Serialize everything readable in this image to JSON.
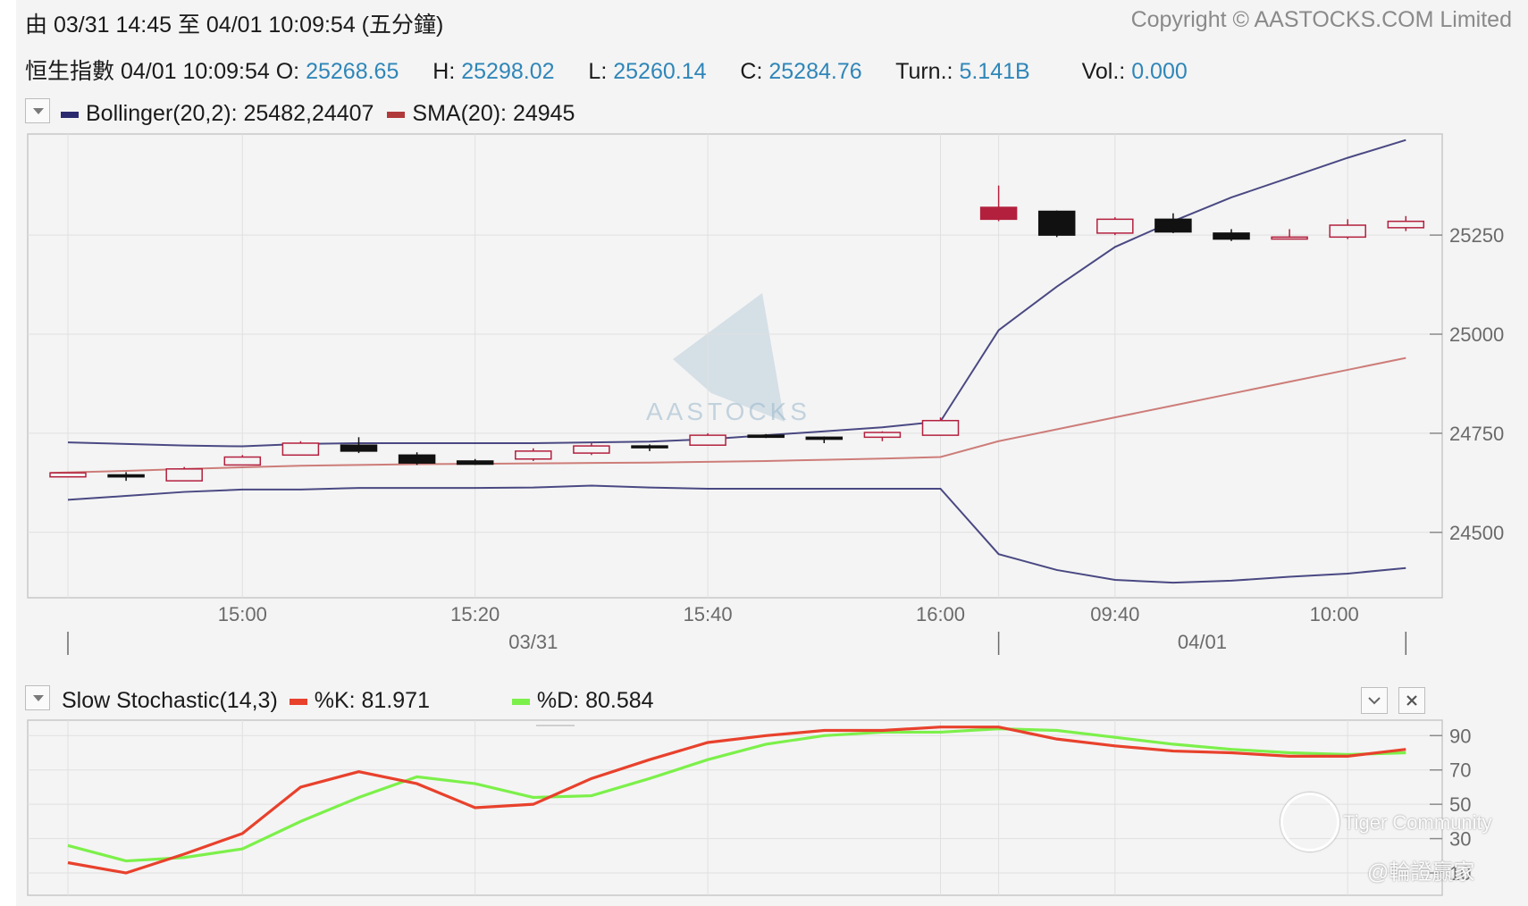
{
  "header": {
    "range_text": "由  03/31 14:45 至  04/01 10:09:54 (五分鐘)",
    "copyright": "Copyright © AASTOCKS.COM Limited"
  },
  "quote": {
    "name_time": "恒生指數 04/01 10:09:54",
    "open_label": "O:",
    "open": "25268.65",
    "high_label": "H:",
    "high": "25298.02",
    "low_label": "L:",
    "low": "25260.14",
    "close_label": "C:",
    "close": "25284.76",
    "turn_label": "Turn.:",
    "turn": "5.141B",
    "vol_label": "Vol.:",
    "vol": "0.000"
  },
  "main_legend": {
    "bollinger": "Bollinger(20,2): 25482,24407",
    "bollinger_color": "#2b2a6e",
    "sma": "SMA(20): 24945",
    "sma_color": "#b03a3a"
  },
  "stoch_legend": {
    "title": "Slow Stochastic(14,3)",
    "k": "%K: 81.971",
    "k_color": "#e8412c",
    "d": "%D: 80.584",
    "d_color": "#7cf04a"
  },
  "watermarks": {
    "center": "AASTOCKS",
    "tiger": "Tiger Community",
    "author": "@輪證贏家"
  },
  "icons": {
    "main_toggle": "dropdown-triangle-icon",
    "stoch_toggle": "dropdown-triangle-icon",
    "collapse": "chevron-down-icon",
    "close": "close-icon"
  },
  "chart_data": [
    {
      "type": "candlestick",
      "title": "恒生指數",
      "x_labels": [
        "15:00",
        "15:20",
        "15:40",
        "16:00",
        "09:40",
        "10:00"
      ],
      "date_labels": [
        "03/31",
        "04/01"
      ],
      "y_ticks": [
        24500,
        24750,
        25000,
        25250
      ],
      "ylim": [
        24335,
        25505
      ],
      "grid": true,
      "candles": [
        {
          "o": 24640,
          "h": 24650,
          "l": 24640,
          "c": 24650
        },
        {
          "o": 24645,
          "h": 24652,
          "l": 24630,
          "c": 24640
        },
        {
          "o": 24630,
          "h": 24665,
          "l": 24630,
          "c": 24660
        },
        {
          "o": 24670,
          "h": 24695,
          "l": 24670,
          "c": 24690
        },
        {
          "o": 24695,
          "h": 24730,
          "l": 24695,
          "c": 24725
        },
        {
          "o": 24720,
          "h": 24740,
          "l": 24700,
          "c": 24705
        },
        {
          "o": 24695,
          "h": 24702,
          "l": 24670,
          "c": 24675
        },
        {
          "o": 24680,
          "h": 24685,
          "l": 24670,
          "c": 24672
        },
        {
          "o": 24685,
          "h": 24712,
          "l": 24680,
          "c": 24705
        },
        {
          "o": 24700,
          "h": 24725,
          "l": 24695,
          "c": 24718
        },
        {
          "o": 24718,
          "h": 24722,
          "l": 24705,
          "c": 24714
        },
        {
          "o": 24720,
          "h": 24750,
          "l": 24720,
          "c": 24745
        },
        {
          "o": 24745,
          "h": 24748,
          "l": 24738,
          "c": 24740
        },
        {
          "o": 24740,
          "h": 24742,
          "l": 24725,
          "c": 24735
        },
        {
          "o": 24740,
          "h": 24755,
          "l": 24730,
          "c": 24752
        },
        {
          "o": 24745,
          "h": 24790,
          "l": 24745,
          "c": 24782
        },
        {
          "o": 25320,
          "h": 25375,
          "l": 25285,
          "c": 25290
        },
        {
          "o": 25310,
          "h": 25312,
          "l": 25245,
          "c": 25250
        },
        {
          "o": 25255,
          "h": 25295,
          "l": 25250,
          "c": 25290
        },
        {
          "o": 25290,
          "h": 25305,
          "l": 25255,
          "c": 25258
        },
        {
          "o": 25255,
          "h": 25265,
          "l": 25235,
          "c": 25240
        },
        {
          "o": 25240,
          "h": 25265,
          "l": 25240,
          "c": 25245
        },
        {
          "o": 25245,
          "h": 25290,
          "l": 25240,
          "c": 25275
        },
        {
          "o": 25268.65,
          "h": 25298.02,
          "l": 25260.14,
          "c": 25284.76
        }
      ],
      "series": [
        {
          "name": "Bollinger upper",
          "values": [
            24727,
            24723,
            24719,
            24717,
            24723,
            24725,
            24725,
            24725,
            24725,
            24727,
            24729,
            24735,
            24745,
            24755,
            24765,
            24780,
            25010,
            25120,
            25220,
            25285,
            25345,
            25395,
            25445,
            25490
          ]
        },
        {
          "name": "Bollinger lower",
          "values": [
            24582,
            24592,
            24602,
            24608,
            24608,
            24612,
            24612,
            24612,
            24613,
            24618,
            24613,
            24610,
            24610,
            24610,
            24610,
            24610,
            24445,
            24405,
            24380,
            24373,
            24378,
            24388,
            24396,
            24410
          ]
        },
        {
          "name": "SMA",
          "values": [
            24650,
            24655,
            24660,
            24664,
            24668,
            24670,
            24672,
            24673,
            24674,
            24675,
            24676,
            24678,
            24680,
            24683,
            24686,
            24690,
            24730,
            24760,
            24790,
            24820,
            24850,
            24880,
            24910,
            24940
          ]
        }
      ]
    },
    {
      "type": "line",
      "title": "Slow Stochastic(14,3)",
      "y_ticks": [
        10,
        30,
        50,
        70,
        90
      ],
      "ylim": [
        -3,
        99
      ],
      "series": [
        {
          "name": "%K",
          "values": [
            16,
            10,
            21,
            33,
            60,
            69,
            62,
            48,
            50,
            65,
            76,
            86,
            90,
            93,
            93,
            95,
            95,
            88,
            84,
            81,
            80,
            78,
            78,
            82
          ]
        },
        {
          "name": "%D",
          "values": [
            26,
            17,
            19,
            24,
            40,
            54,
            66,
            62,
            54,
            55,
            65,
            76,
            85,
            90,
            92,
            92,
            94,
            93,
            89,
            85,
            82,
            80,
            79,
            80
          ]
        }
      ]
    }
  ]
}
